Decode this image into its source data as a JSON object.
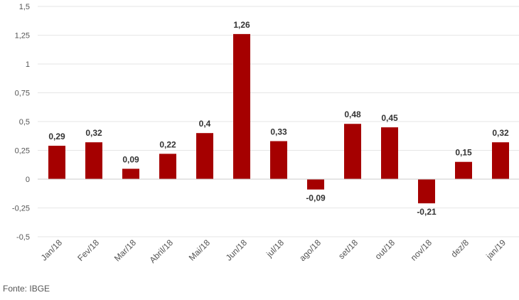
{
  "chart_data": {
    "type": "bar",
    "categories": [
      "Jan/18",
      "Fev/18",
      "Mar/18",
      "Abril/18",
      "Mai/18",
      "Jun/18",
      "jul/18",
      "ago/18",
      "set/18",
      "out/18",
      "nov/18",
      "dez/8",
      "jan/19"
    ],
    "values": [
      0.29,
      0.32,
      0.09,
      0.22,
      0.4,
      1.26,
      0.33,
      -0.09,
      0.48,
      0.45,
      -0.21,
      0.15,
      0.32
    ],
    "data_labels": [
      "0,29",
      "0,32",
      "0,09",
      "0,22",
      "0,4",
      "1,26",
      "0,33",
      "-0,09",
      "0,48",
      "0,45",
      "-0,21",
      "0,15",
      "0,32"
    ],
    "y_ticks": [
      1.5,
      1.25,
      1,
      0.75,
      0.5,
      0.25,
      0,
      -0.25,
      -0.5
    ],
    "y_tick_labels": [
      "1,5",
      "1,25",
      "1",
      "0,75",
      "0,5",
      "0,25",
      "0",
      "-0,25",
      "-0,5"
    ],
    "ylim": [
      -0.5,
      1.5
    ],
    "title": "",
    "xlabel": "",
    "ylabel": "",
    "grid": true,
    "legend": "none",
    "bar_color": "#a50000",
    "grid_color": "#e6e6e6",
    "axis_color": "#cccccc",
    "tick_text_color": "#555555",
    "label_text_color": "#333333"
  },
  "source": "Fonte: IBGE"
}
